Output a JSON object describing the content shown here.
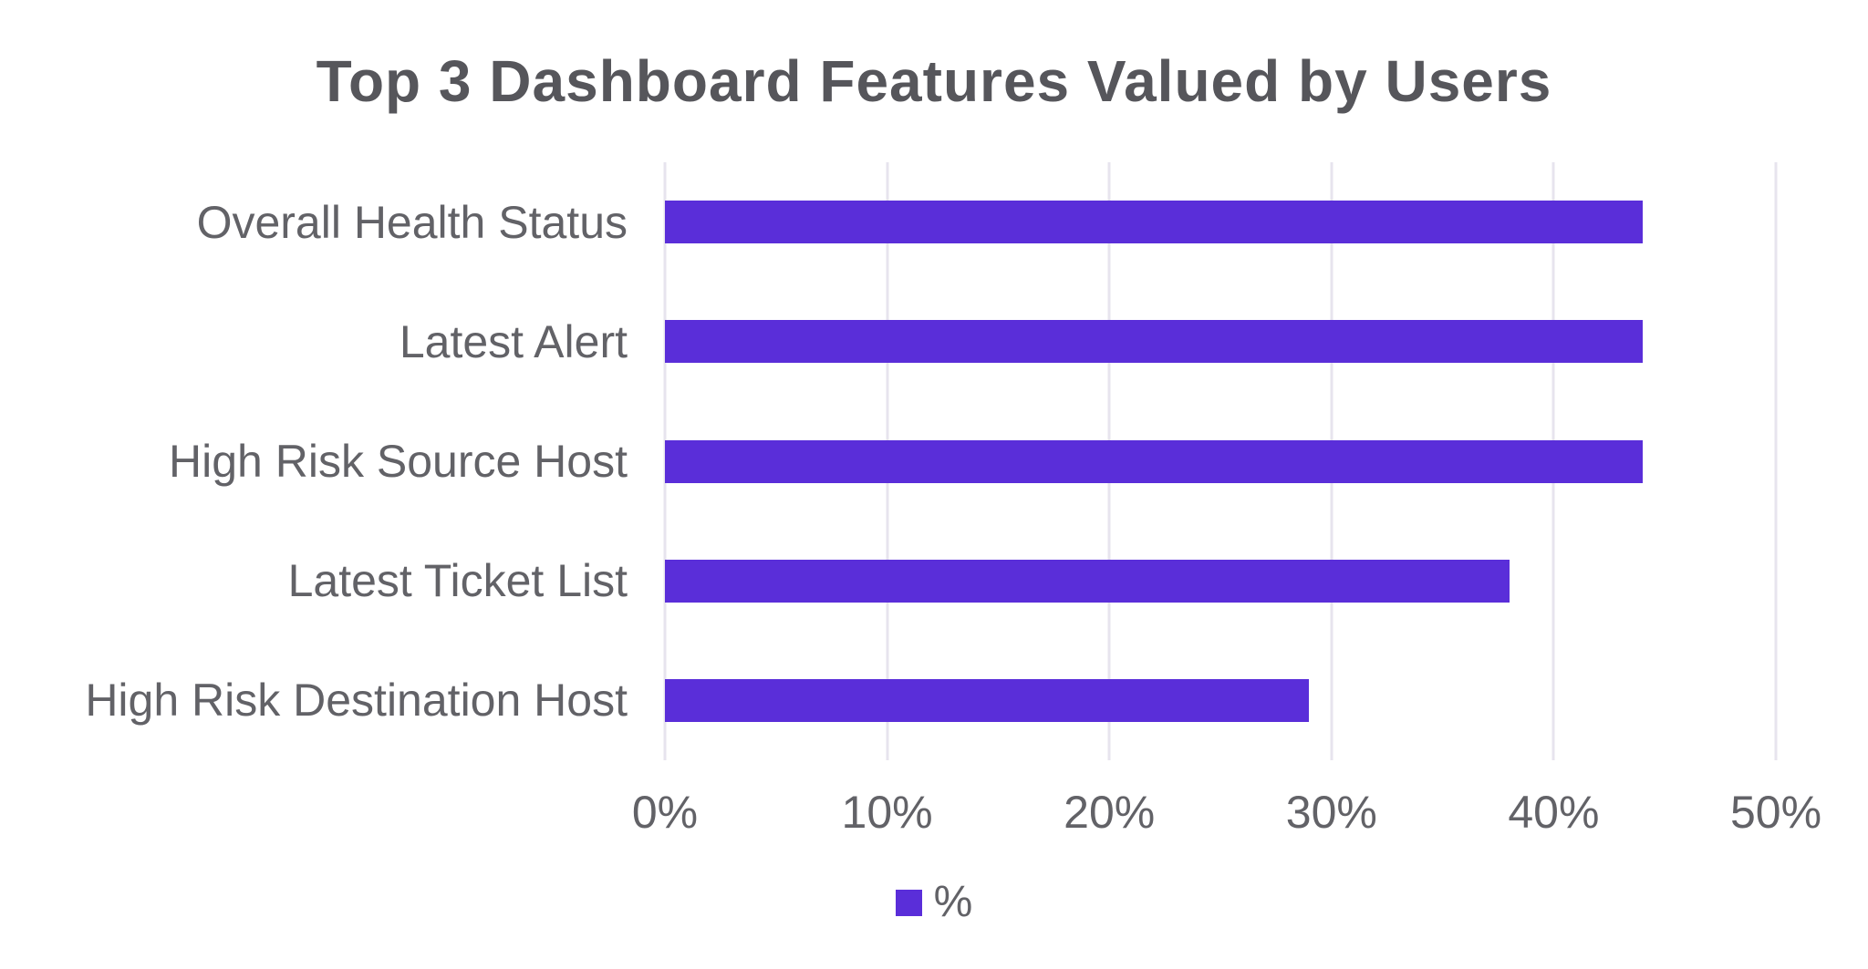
{
  "chart_data": {
    "type": "bar",
    "orientation": "horizontal",
    "title": "Top 3 Dashboard Features Valued by Users",
    "categories": [
      "Overall Health Status",
      "Latest Alert",
      "High Risk Source Host",
      "Latest Ticket List",
      "High Risk Destination Host"
    ],
    "series": [
      {
        "name": "%",
        "values": [
          44,
          44,
          44,
          38,
          29
        ]
      }
    ],
    "xlabel": "",
    "ylabel": "",
    "xlim": [
      0,
      50
    ],
    "x_tick_labels": [
      "0%",
      "10%",
      "20%",
      "30%",
      "40%",
      "50%"
    ],
    "x_tick_values": [
      0,
      10,
      20,
      30,
      40,
      50
    ],
    "grid": "vertical-only",
    "legend": {
      "position": "bottom-center",
      "entries": [
        "%"
      ]
    }
  },
  "colors": {
    "bar": "#5A2ED9",
    "grid": "#E7E4EE",
    "title_text": "#56565B",
    "axis_text": "#626267",
    "background": "#FFFFFF"
  }
}
